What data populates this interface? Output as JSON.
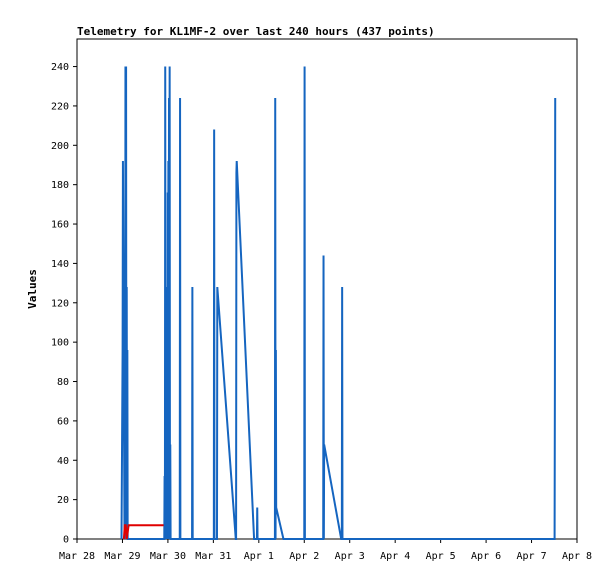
{
  "chart_data": {
    "type": "line",
    "title": "Telemetry for KL1MF-2 over last 240 hours (437 points)",
    "xlabel": "",
    "ylabel": "Values",
    "xlim": [
      "2024-03-28",
      "2024-04-08"
    ],
    "ylim": [
      0,
      254
    ],
    "x_ticks": [
      "Mar 28",
      "Mar 29",
      "Mar 30",
      "Mar 31",
      "Apr 1",
      "Apr 2",
      "Apr 3",
      "Apr 4",
      "Apr 5",
      "Apr 6",
      "Apr 7",
      "Apr 8"
    ],
    "y_ticks": [
      0,
      20,
      40,
      60,
      80,
      100,
      120,
      140,
      160,
      180,
      200,
      220,
      240
    ],
    "grid": false,
    "legend": "none",
    "series": [
      {
        "name": "",
        "color": "#1565c0",
        "x": [
          "2024-03-28T23:30",
          "2024-03-29T00:05",
          "2024-03-29T00:15",
          "2024-03-29T01:05",
          "2024-03-29T01:15",
          "2024-03-29T01:25",
          "2024-03-29T01:35",
          "2024-03-29T01:45",
          "2024-03-29T01:55",
          "2024-03-29T02:05",
          "2024-03-29T02:15",
          "2024-03-29T02:25",
          "2024-03-29T02:35",
          "2024-03-29T02:45",
          "2024-03-29T22:05",
          "2024-03-29T22:15",
          "2024-03-29T22:25",
          "2024-03-29T22:35",
          "2024-03-29T22:45",
          "2024-03-29T22:55",
          "2024-03-29T23:05",
          "2024-03-29T23:15",
          "2024-03-29T23:25",
          "2024-03-29T23:35",
          "2024-03-29T23:45",
          "2024-03-29T23:55",
          "2024-03-30T00:05",
          "2024-03-30T00:15",
          "2024-03-30T00:25",
          "2024-03-30T00:35",
          "2024-03-30T00:45",
          "2024-03-30T00:55",
          "2024-03-30T01:05",
          "2024-03-30T01:15",
          "2024-03-30T01:25",
          "2024-03-30T06:15",
          "2024-03-30T06:25",
          "2024-03-30T06:35",
          "2024-03-30T06:45",
          "2024-03-30T12:45",
          "2024-03-30T12:55",
          "2024-03-30T13:05",
          "2024-03-30T13:15",
          "2024-03-31T00:15",
          "2024-03-31T00:25",
          "2024-03-31T00:35",
          "2024-03-31T00:45",
          "2024-03-31T01:45",
          "2024-03-31T01:55",
          "2024-03-31T02:05",
          "2024-03-31T11:50",
          "2024-03-31T12:00",
          "2024-03-31T12:10",
          "2024-03-31T12:20",
          "2024-03-31T21:30",
          "2024-03-31T23:00",
          "2024-03-31T23:10",
          "2024-03-31T23:20",
          "2024-04-01T01:00",
          "2024-04-01T02:00",
          "2024-04-01T08:30",
          "2024-04-01T08:40",
          "2024-04-01T08:50",
          "2024-04-01T09:00",
          "2024-04-01T09:10",
          "2024-04-01T13:00",
          "2024-04-01T13:10",
          "2024-04-01T13:20",
          "2024-04-01T13:30",
          "2024-04-01T13:40",
          "2024-04-01T13:50",
          "2024-04-02T00:00",
          "2024-04-02T00:10",
          "2024-04-02T00:20",
          "2024-04-02T00:30",
          "2024-04-02T00:40",
          "2024-04-02T10:00",
          "2024-04-02T10:10",
          "2024-04-02T10:20",
          "2024-04-02T10:30",
          "2024-04-02T19:30",
          "2024-04-02T19:40",
          "2024-04-02T19:50",
          "2024-04-02T20:00",
          "2024-04-02T20:10",
          "2024-04-07T12:00",
          "2024-04-07T12:10",
          "2024-04-07T12:20",
          "2024-04-07T12:30"
        ],
        "y": [
          0,
          96,
          192,
          0,
          128,
          0,
          240,
          0,
          240,
          0,
          128,
          0,
          96,
          0,
          0,
          32,
          0,
          240,
          0,
          128,
          0,
          96,
          0,
          64,
          0,
          176,
          0,
          192,
          0,
          224,
          0,
          240,
          0,
          48,
          0,
          0,
          224,
          0,
          0,
          0,
          128,
          0,
          0,
          0,
          208,
          0,
          0,
          0,
          0,
          128,
          0,
          0,
          186,
          192,
          0,
          0,
          16,
          0,
          0,
          0,
          0,
          224,
          0,
          96,
          16,
          0,
          0,
          0,
          0,
          0,
          0,
          0,
          240,
          0,
          0,
          0,
          0,
          144,
          0,
          48,
          0,
          0,
          0,
          128,
          0,
          0,
          0,
          80,
          224
        ]
      },
      {
        "name": "",
        "color": "#e00000",
        "x": [
          "2024-03-29T00:45",
          "2024-03-29T01:15",
          "2024-03-29T01:45",
          "2024-03-29T02:15",
          "2024-03-29T03:15",
          "2024-03-29T09:00",
          "2024-03-29T15:00",
          "2024-03-29T21:00",
          "2024-03-29T21:45"
        ],
        "y": [
          0,
          7,
          7,
          0,
          7,
          7,
          7,
          7,
          7
        ]
      }
    ]
  }
}
